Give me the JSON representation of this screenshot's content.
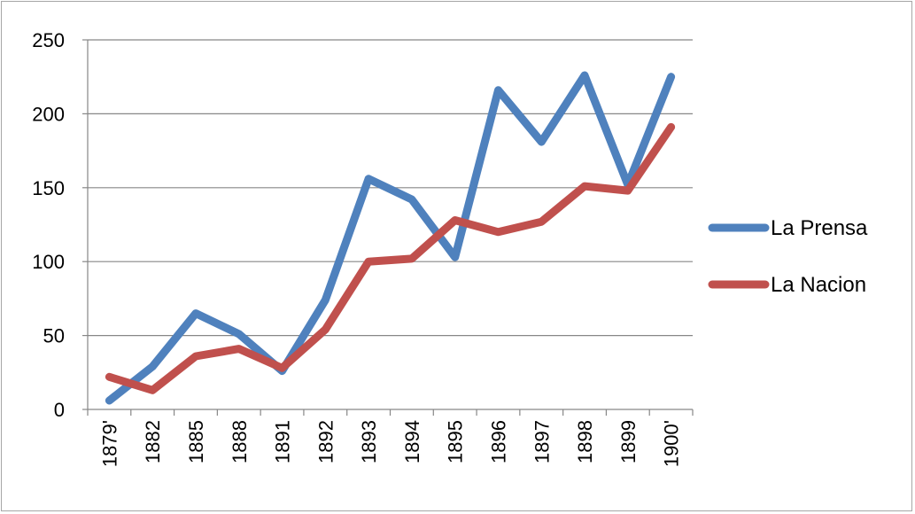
{
  "chart_data": {
    "type": "line",
    "categories": [
      "1879'",
      "1882",
      "1885",
      "1888",
      "1891",
      "1892",
      "1893",
      "1894",
      "1895",
      "1896",
      "1897",
      "1898",
      "1899",
      "1900'"
    ],
    "series": [
      {
        "name": "La Prensa",
        "color": "#4f81bd",
        "values": [
          6,
          29,
          65,
          51,
          26,
          74,
          156,
          142,
          103,
          216,
          181,
          226,
          152,
          225
        ]
      },
      {
        "name": "La Nacion",
        "color": "#c0504d",
        "values": [
          22,
          13,
          36,
          41,
          28,
          54,
          100,
          102,
          128,
          120,
          127,
          151,
          148,
          191
        ]
      }
    ],
    "yticks": [
      "0",
      "50",
      "100",
      "150",
      "200",
      "250"
    ],
    "ylim": [
      0,
      250
    ],
    "grid": true,
    "legend_position": "right"
  }
}
